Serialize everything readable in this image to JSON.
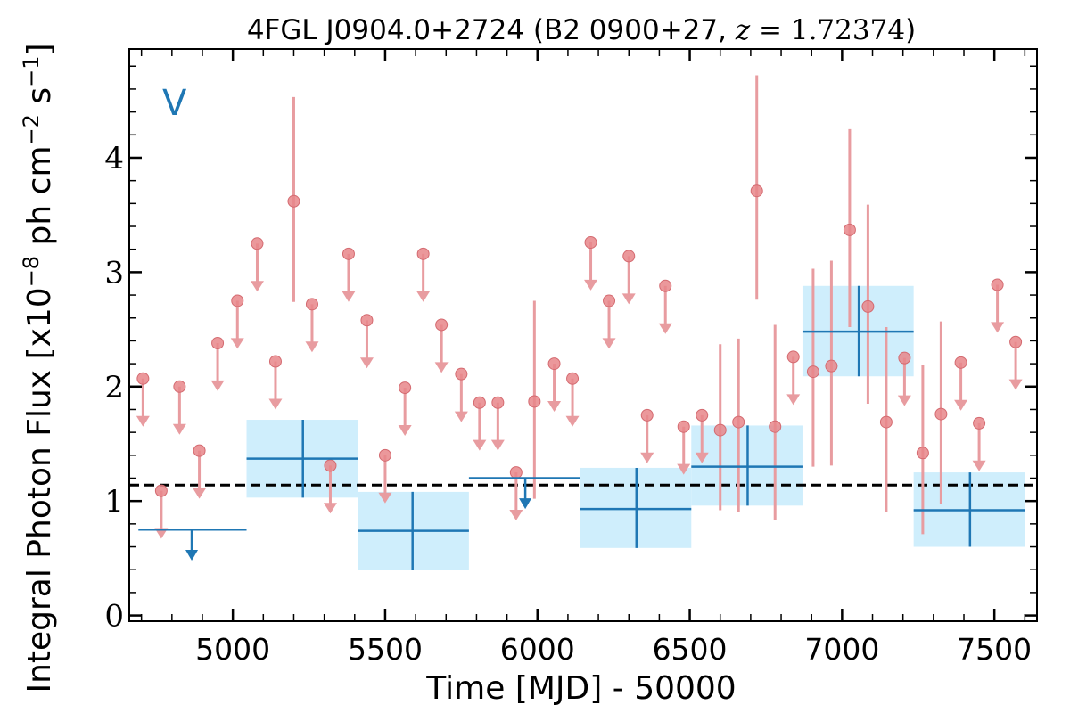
{
  "chart_data": {
    "type": "scatter",
    "title": "4FGL J0904.0+2724 (B2 0900+27, z = 1.72374)",
    "title_parts": {
      "main": "4FGL J0904.0+2724 (B2 0900+27, ",
      "z_symbol": "z",
      "z_value": " = 1.72374",
      "close": ")"
    },
    "panel_label": "V",
    "xlabel": "Time [MJD] - 50000",
    "ylabel": "Integral Photon Flux [x10⁻⁸ ph cm⁻² s⁻¹]",
    "ylabel_parts": {
      "main": "Integral Photon Flux [x10",
      "exp1": "−8",
      "mid1": " ph cm",
      "exp2": "−2",
      "mid2": " s",
      "exp3": "−1",
      "close": "]"
    },
    "xlim": [
      4660,
      7640
    ],
    "ylim": [
      -0.05,
      4.95
    ],
    "x_ticks": [
      5000,
      5500,
      6000,
      6500,
      7000,
      7500
    ],
    "x_tick_labels": [
      "5000",
      "5500",
      "6000",
      "6500",
      "7000",
      "7500"
    ],
    "y_ticks": [
      0,
      1,
      2,
      3,
      4
    ],
    "y_tick_labels": [
      "0",
      "1",
      "2",
      "3",
      "4"
    ],
    "reference_line": {
      "y": 1.14,
      "style": "dashed",
      "color": "#000000"
    },
    "colors": {
      "fine_points": "#e8868a",
      "fine_errors": "#e89ca0",
      "coarse_line": "#1f77b4",
      "coarse_box": "#cfeefc"
    },
    "series": [
      {
        "binning": "fine",
        "detections": [
          {
            "x": 5200,
            "y": 3.62,
            "ylo": 2.74,
            "yhi": 4.53
          },
          {
            "x": 5990,
            "y": 1.87,
            "ylo": 1.02,
            "yhi": 2.75
          },
          {
            "x": 6600,
            "y": 1.62,
            "ylo": 0.92,
            "yhi": 2.37
          },
          {
            "x": 6660,
            "y": 1.69,
            "ylo": 0.9,
            "yhi": 2.42
          },
          {
            "x": 6720,
            "y": 3.71,
            "ylo": 2.76,
            "yhi": 4.72
          },
          {
            "x": 6780,
            "y": 1.65,
            "ylo": 0.83,
            "yhi": 2.54
          },
          {
            "x": 6905,
            "y": 2.13,
            "ylo": 1.3,
            "yhi": 3.03
          },
          {
            "x": 6965,
            "y": 2.18,
            "ylo": 1.31,
            "yhi": 3.1
          },
          {
            "x": 7025,
            "y": 3.37,
            "ylo": 2.52,
            "yhi": 4.25
          },
          {
            "x": 7085,
            "y": 2.7,
            "ylo": 1.85,
            "yhi": 3.59
          },
          {
            "x": 7145,
            "y": 1.69,
            "ylo": 0.9,
            "yhi": 2.52
          },
          {
            "x": 7265,
            "y": 1.42,
            "ylo": 0.71,
            "yhi": 2.19
          },
          {
            "x": 7325,
            "y": 1.76,
            "ylo": 0.97,
            "yhi": 2.57
          }
        ],
        "upper_limits": [
          {
            "x": 4705,
            "y": 2.07
          },
          {
            "x": 4765,
            "y": 1.09
          },
          {
            "x": 4825,
            "y": 2.0
          },
          {
            "x": 4890,
            "y": 1.44
          },
          {
            "x": 4950,
            "y": 2.38
          },
          {
            "x": 5015,
            "y": 2.75
          },
          {
            "x": 5080,
            "y": 3.25
          },
          {
            "x": 5140,
            "y": 2.22
          },
          {
            "x": 5260,
            "y": 2.72
          },
          {
            "x": 5320,
            "y": 1.31
          },
          {
            "x": 5380,
            "y": 3.16
          },
          {
            "x": 5440,
            "y": 2.58
          },
          {
            "x": 5500,
            "y": 1.4
          },
          {
            "x": 5565,
            "y": 1.99
          },
          {
            "x": 5625,
            "y": 3.16
          },
          {
            "x": 5685,
            "y": 2.54
          },
          {
            "x": 5750,
            "y": 2.11
          },
          {
            "x": 5810,
            "y": 1.86
          },
          {
            "x": 5870,
            "y": 1.86
          },
          {
            "x": 5930,
            "y": 1.25
          },
          {
            "x": 6055,
            "y": 2.2
          },
          {
            "x": 6115,
            "y": 2.07
          },
          {
            "x": 6175,
            "y": 3.26
          },
          {
            "x": 6235,
            "y": 2.75
          },
          {
            "x": 6300,
            "y": 3.14
          },
          {
            "x": 6360,
            "y": 1.75
          },
          {
            "x": 6420,
            "y": 2.88
          },
          {
            "x": 6480,
            "y": 1.65
          },
          {
            "x": 6540,
            "y": 1.75
          },
          {
            "x": 6840,
            "y": 2.26
          },
          {
            "x": 7205,
            "y": 2.25
          },
          {
            "x": 7390,
            "y": 2.21
          },
          {
            "x": 7450,
            "y": 1.68
          },
          {
            "x": 7510,
            "y": 2.89
          },
          {
            "x": 7570,
            "y": 2.39
          }
        ]
      },
      {
        "binning": "coarse",
        "detections": [
          {
            "x0": 5045,
            "x1": 5410,
            "x": 5230,
            "y": 1.37,
            "ylo": 1.03,
            "yhi": 1.71
          },
          {
            "x0": 5410,
            "x1": 5775,
            "x": 5590,
            "y": 0.74,
            "ylo": 0.4,
            "yhi": 1.08
          },
          {
            "x0": 6140,
            "x1": 6505,
            "x": 6325,
            "y": 0.93,
            "ylo": 0.59,
            "yhi": 1.29
          },
          {
            "x0": 6505,
            "x1": 6870,
            "x": 6690,
            "y": 1.3,
            "ylo": 0.96,
            "yhi": 1.66
          },
          {
            "x0": 6870,
            "x1": 7235,
            "x": 7055,
            "y": 2.48,
            "ylo": 2.09,
            "yhi": 2.88
          },
          {
            "x0": 7235,
            "x1": 7600,
            "x": 7420,
            "y": 0.92,
            "ylo": 0.6,
            "yhi": 1.25
          }
        ],
        "upper_limits": [
          {
            "x0": 4690,
            "x1": 5045,
            "x": 4865,
            "y": 0.75
          },
          {
            "x0": 5775,
            "x1": 6140,
            "x": 5960,
            "y": 1.2
          }
        ]
      }
    ]
  }
}
